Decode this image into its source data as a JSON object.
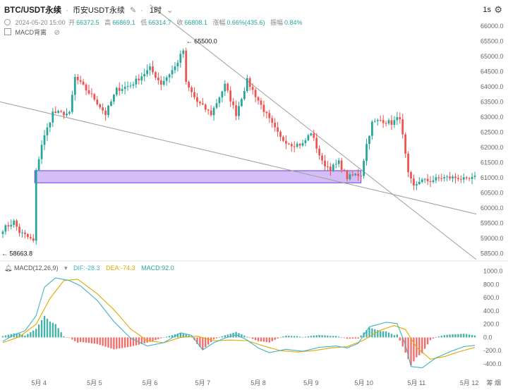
{
  "header": {
    "title": "BTC/USDT永续",
    "exchange": "币安USDT永续",
    "timeframe": "1时",
    "interval_label": "1s"
  },
  "ohlc": {
    "datetime": "2024-05-20 15:00",
    "open_label": "开",
    "open": "66372.5",
    "high_label": "高",
    "high": "66869.1",
    "low_label": "低",
    "low": "66314.7",
    "close_label": "收",
    "close": "66808.1",
    "change_label": "涨幅",
    "change": "0.66%(435.6)",
    "amp_label": "振幅",
    "amp": "0.84%"
  },
  "indicator_tag": {
    "label": "MACD背离"
  },
  "macd_header": {
    "label": "MACD(12,26,9)",
    "dif": "DIF:-28.3",
    "dea": "DEA:-74.3",
    "macd": "MACD:92.0"
  },
  "corner_labels": {
    "left": "筹",
    "right": "烟"
  },
  "colors": {
    "up": "#26a69a",
    "down": "#ef5350",
    "dif_line": "#42b3c7",
    "dea_line": "#e0a800",
    "zone_fill": "#c7a8f5",
    "zone_stroke": "#6b3fd6",
    "trendline": "#9e9e9e",
    "axis_text": "#666666"
  },
  "chart_data": {
    "type": "candlestick",
    "x_ticks": [
      "5月 4",
      "5月 5",
      "5月 6",
      "5月 7",
      "5月 8",
      "5月 9",
      "5月 10",
      "5月 11",
      "5月 12"
    ],
    "price_ticks": [
      58500,
      59000,
      59500,
      60000,
      60500,
      61000,
      61500,
      62000,
      62500,
      63000,
      63500,
      64000,
      64500,
      65000,
      65500,
      66000
    ],
    "price_range": [
      58300,
      66300
    ],
    "annotations": [
      {
        "label": "65500.0",
        "price": 65500,
        "position": "high"
      },
      {
        "label": "58663.8",
        "price": 58663.8,
        "position": "low"
      }
    ],
    "highlight_zone": {
      "from_price": 60830,
      "to_price": 61230,
      "from_label": "5月 4",
      "to_label": "5月 10"
    },
    "trendlines": [
      {
        "from": [
          "start",
          63500
        ],
        "to": [
          "end",
          59800
        ]
      },
      {
        "from": [
          "5月 6",
          66700
        ],
        "to": [
          "end",
          58300
        ]
      }
    ],
    "price_anchors": [
      [
        0,
        59300
      ],
      [
        4,
        59550
      ],
      [
        6,
        59200
      ],
      [
        8,
        59100
      ],
      [
        11,
        58900
      ],
      [
        12,
        61200
      ],
      [
        14,
        62100
      ],
      [
        18,
        63150
      ],
      [
        24,
        63100
      ],
      [
        26,
        64300
      ],
      [
        33,
        63600
      ],
      [
        37,
        63100
      ],
      [
        41,
        63900
      ],
      [
        46,
        64050
      ],
      [
        48,
        64200
      ],
      [
        53,
        64600
      ],
      [
        57,
        64100
      ],
      [
        62,
        64650
      ],
      [
        65,
        65200
      ],
      [
        66,
        64100
      ],
      [
        70,
        63500
      ],
      [
        75,
        63100
      ],
      [
        80,
        64050
      ],
      [
        84,
        63100
      ],
      [
        88,
        64200
      ],
      [
        92,
        63550
      ],
      [
        96,
        62900
      ],
      [
        100,
        62300
      ],
      [
        104,
        62100
      ],
      [
        108,
        62100
      ],
      [
        111,
        62500
      ],
      [
        115,
        61500
      ],
      [
        118,
        61300
      ],
      [
        121,
        61500
      ],
      [
        124,
        61000
      ],
      [
        127,
        61100
      ],
      [
        129,
        61100
      ],
      [
        131,
        62100
      ],
      [
        133,
        62800
      ],
      [
        136,
        62900
      ],
      [
        140,
        62800
      ],
      [
        143,
        63000
      ],
      [
        146,
        61100
      ],
      [
        148,
        60700
      ],
      [
        150,
        60900
      ],
      [
        154,
        60900
      ],
      [
        158,
        61000
      ],
      [
        161,
        61000
      ],
      [
        164,
        61000
      ],
      [
        167,
        60900
      ],
      [
        170,
        61000
      ]
    ],
    "macd_axis": {
      "ticks": [
        1000,
        800,
        600,
        400,
        200,
        0,
        -200,
        -400
      ],
      "range": [
        -550,
        1050
      ]
    },
    "dif_anchors": [
      [
        0,
        -60
      ],
      [
        4,
        40
      ],
      [
        8,
        100
      ],
      [
        12,
        330
      ],
      [
        15,
        760
      ],
      [
        19,
        900
      ],
      [
        24,
        860
      ],
      [
        28,
        780
      ],
      [
        34,
        560
      ],
      [
        40,
        240
      ],
      [
        46,
        -10
      ],
      [
        52,
        -130
      ],
      [
        58,
        -80
      ],
      [
        64,
        70
      ],
      [
        68,
        30
      ],
      [
        72,
        -190
      ],
      [
        76,
        -80
      ],
      [
        80,
        -10
      ],
      [
        84,
        40
      ],
      [
        88,
        -40
      ],
      [
        92,
        -160
      ],
      [
        96,
        -230
      ],
      [
        102,
        -180
      ],
      [
        108,
        -210
      ],
      [
        114,
        -150
      ],
      [
        120,
        -130
      ],
      [
        124,
        -160
      ],
      [
        128,
        -90
      ],
      [
        132,
        160
      ],
      [
        138,
        230
      ],
      [
        142,
        210
      ],
      [
        145,
        -110
      ],
      [
        147,
        -440
      ],
      [
        151,
        -460
      ],
      [
        156,
        -310
      ],
      [
        162,
        -200
      ],
      [
        166,
        -140
      ],
      [
        170,
        -120
      ]
    ],
    "dea_anchors": [
      [
        0,
        -80
      ],
      [
        6,
        10
      ],
      [
        12,
        200
      ],
      [
        17,
        590
      ],
      [
        22,
        860
      ],
      [
        27,
        880
      ],
      [
        34,
        660
      ],
      [
        40,
        420
      ],
      [
        46,
        130
      ],
      [
        52,
        -50
      ],
      [
        58,
        -80
      ],
      [
        64,
        0
      ],
      [
        70,
        20
      ],
      [
        76,
        -50
      ],
      [
        82,
        -40
      ],
      [
        88,
        -50
      ],
      [
        94,
        -130
      ],
      [
        100,
        -200
      ],
      [
        106,
        -220
      ],
      [
        112,
        -200
      ],
      [
        118,
        -160
      ],
      [
        124,
        -140
      ],
      [
        130,
        -40
      ],
      [
        136,
        110
      ],
      [
        141,
        180
      ],
      [
        145,
        120
      ],
      [
        149,
        -150
      ],
      [
        154,
        -330
      ],
      [
        159,
        -290
      ],
      [
        164,
        -220
      ],
      [
        170,
        -150
      ]
    ],
    "series": [
      {
        "name": "DIF",
        "value": -28.3
      },
      {
        "name": "DEA",
        "value": -74.3
      },
      {
        "name": "MACD",
        "value": 92.0
      }
    ]
  }
}
